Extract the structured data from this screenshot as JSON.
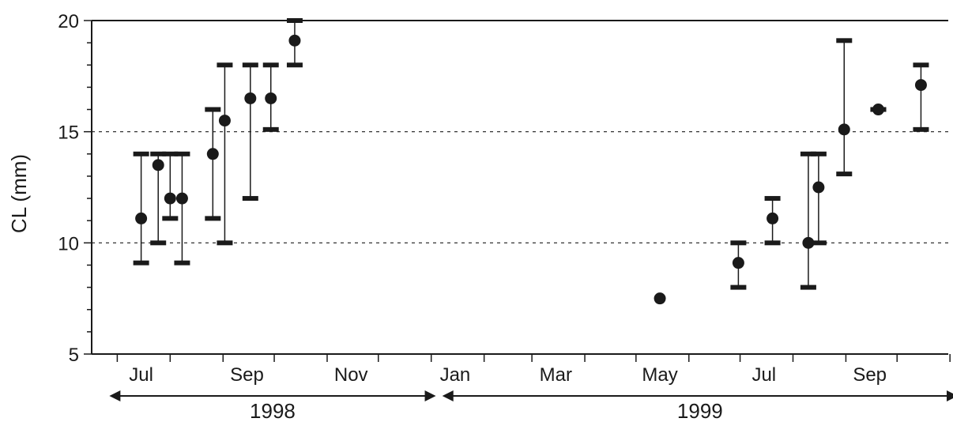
{
  "chart_data": {
    "type": "scatter",
    "ylabel": "CL (mm)",
    "ylim": [
      5,
      20
    ],
    "yticks": [
      5,
      10,
      15,
      20
    ],
    "grid": {
      "y": [
        10,
        15
      ],
      "style": "dashed"
    },
    "x_month_labels": [
      "Jul",
      "Sep",
      "Nov",
      "Jan",
      "Mar",
      "May",
      "Jul",
      "Sep"
    ],
    "year_spans": [
      {
        "label": "1998",
        "from": "1998-07-01",
        "to": "1998-12-31"
      },
      {
        "label": "1999",
        "from": "1999-01-01",
        "to": "1999-10-31"
      }
    ],
    "xlim": [
      "1998-06-16",
      "1999-10-31"
    ],
    "points": [
      {
        "date": "1998-07-15",
        "mean": 11.1,
        "min": 9.1,
        "max": 14.0
      },
      {
        "date": "1998-07-25",
        "mean": 13.5,
        "min": 10.0,
        "max": 14.0
      },
      {
        "date": "1998-08-01",
        "mean": 12.0,
        "min": 11.1,
        "max": 14.0
      },
      {
        "date": "1998-08-08",
        "mean": 12.0,
        "min": 9.1,
        "max": 14.0
      },
      {
        "date": "1998-08-26",
        "mean": 14.0,
        "min": 11.1,
        "max": 16.0
      },
      {
        "date": "1998-09-02",
        "mean": 15.5,
        "min": 10.0,
        "max": 18.0
      },
      {
        "date": "1998-09-17",
        "mean": 16.5,
        "min": 12.0,
        "max": 18.0
      },
      {
        "date": "1998-09-29",
        "mean": 16.5,
        "min": 15.1,
        "max": 18.0
      },
      {
        "date": "1998-10-13",
        "mean": 19.1,
        "min": 18.0,
        "max": 20.0
      },
      {
        "date": "1999-05-15",
        "mean": 7.5,
        "min": 7.5,
        "max": 7.5
      },
      {
        "date": "1999-06-30",
        "mean": 9.1,
        "min": 8.0,
        "max": 10.0
      },
      {
        "date": "1999-07-20",
        "mean": 11.1,
        "min": 10.0,
        "max": 12.0
      },
      {
        "date": "1999-08-10",
        "mean": 10.0,
        "min": 8.0,
        "max": 14.0
      },
      {
        "date": "1999-08-16",
        "mean": 12.5,
        "min": 10.0,
        "max": 14.0
      },
      {
        "date": "1999-08-31",
        "mean": 15.1,
        "min": 13.1,
        "max": 19.1
      },
      {
        "date": "1999-09-20",
        "mean": 16.0,
        "min": 16.0,
        "max": 16.0
      },
      {
        "date": "1999-10-15",
        "mean": 17.1,
        "min": 15.1,
        "max": 18.0
      }
    ]
  }
}
